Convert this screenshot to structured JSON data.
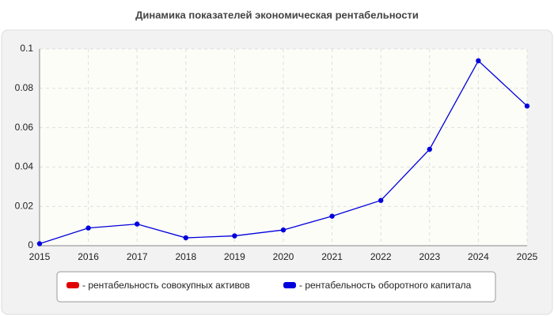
{
  "chart_data": {
    "type": "line",
    "title": "Динамика показателей экономическая рентабельности",
    "x": [
      2015,
      2016,
      2017,
      2018,
      2019,
      2020,
      2021,
      2022,
      2023,
      2024,
      2025
    ],
    "series": [
      {
        "name": "- рентабельность совокупных активов",
        "color": "#e00000",
        "values": [
          null,
          null,
          null,
          null,
          null,
          null,
          null,
          null,
          null,
          null,
          null
        ]
      },
      {
        "name": "- рентабельность оборотного капитала",
        "color": "#0000dd",
        "values": [
          0.001,
          0.009,
          0.011,
          0.004,
          0.005,
          0.008,
          0.015,
          0.023,
          0.049,
          0.094,
          0.071
        ]
      }
    ],
    "xlim": [
      2015,
      2025
    ],
    "xticks": [
      2015,
      2016,
      2017,
      2018,
      2019,
      2020,
      2021,
      2022,
      2023,
      2024,
      2025
    ],
    "ylim": [
      0,
      0.1
    ],
    "yticks": [
      0,
      0.02,
      0.04,
      0.06,
      0.08,
      0.1
    ],
    "grid": true
  }
}
